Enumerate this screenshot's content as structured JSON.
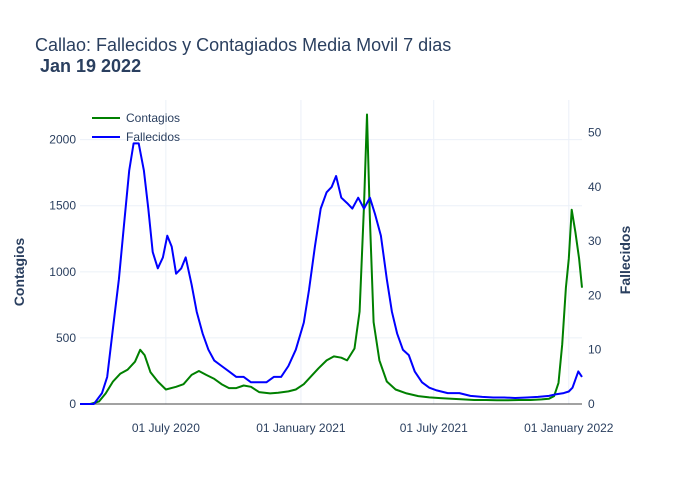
{
  "chart_data": {
    "type": "line",
    "title": "Callao: Fallecidos y Contagiados Media Movil 7 dias",
    "subtitle": "Jan 19 2022",
    "ylabel_left": "Contagios",
    "ylabel_right": "Fallecidos",
    "xlabel": "",
    "x_range": [
      "2020-03-06",
      "2022-01-19"
    ],
    "y_left_range": [
      0,
      2300
    ],
    "y_right_range": [
      0,
      56
    ],
    "y_left_ticks": [
      0,
      500,
      1000,
      1500,
      2000
    ],
    "y_right_ticks": [
      0,
      10,
      20,
      30,
      40,
      50
    ],
    "x_ticks": [
      {
        "date": "2020-07-01",
        "label": "01 July 2020"
      },
      {
        "date": "2021-01-01",
        "label": "01 January 2021"
      },
      {
        "date": "2021-07-01",
        "label": "01 July 2021"
      },
      {
        "date": "2022-01-01",
        "label": "01 January 2022"
      }
    ],
    "grid": true,
    "legend_position": "top-left",
    "series": [
      {
        "name": "Contagios",
        "axis": "left",
        "color": "#008000",
        "points": [
          [
            "2020-03-06",
            0
          ],
          [
            "2020-03-20",
            0
          ],
          [
            "2020-04-01",
            20
          ],
          [
            "2020-04-10",
            80
          ],
          [
            "2020-04-20",
            170
          ],
          [
            "2020-04-30",
            230
          ],
          [
            "2020-05-10",
            260
          ],
          [
            "2020-05-20",
            320
          ],
          [
            "2020-05-27",
            410
          ],
          [
            "2020-06-02",
            370
          ],
          [
            "2020-06-10",
            240
          ],
          [
            "2020-06-20",
            170
          ],
          [
            "2020-07-01",
            110
          ],
          [
            "2020-07-15",
            130
          ],
          [
            "2020-07-25",
            150
          ],
          [
            "2020-08-05",
            220
          ],
          [
            "2020-08-15",
            250
          ],
          [
            "2020-08-25",
            220
          ],
          [
            "2020-09-05",
            190
          ],
          [
            "2020-09-15",
            150
          ],
          [
            "2020-09-25",
            120
          ],
          [
            "2020-10-05",
            120
          ],
          [
            "2020-10-15",
            140
          ],
          [
            "2020-10-25",
            130
          ],
          [
            "2020-11-05",
            90
          ],
          [
            "2020-11-20",
            80
          ],
          [
            "2020-12-01",
            85
          ],
          [
            "2020-12-15",
            95
          ],
          [
            "2020-12-25",
            110
          ],
          [
            "2021-01-05",
            150
          ],
          [
            "2021-01-15",
            210
          ],
          [
            "2021-01-25",
            270
          ],
          [
            "2021-02-05",
            330
          ],
          [
            "2021-02-15",
            360
          ],
          [
            "2021-02-25",
            350
          ],
          [
            "2021-03-05",
            330
          ],
          [
            "2021-03-15",
            420
          ],
          [
            "2021-03-22",
            700
          ],
          [
            "2021-03-28",
            1500
          ],
          [
            "2021-04-01",
            2190
          ],
          [
            "2021-04-05",
            1400
          ],
          [
            "2021-04-10",
            620
          ],
          [
            "2021-04-18",
            330
          ],
          [
            "2021-04-28",
            170
          ],
          [
            "2021-05-10",
            110
          ],
          [
            "2021-05-25",
            80
          ],
          [
            "2021-06-10",
            60
          ],
          [
            "2021-06-25",
            50
          ],
          [
            "2021-07-10",
            45
          ],
          [
            "2021-07-25",
            40
          ],
          [
            "2021-08-10",
            35
          ],
          [
            "2021-08-25",
            30
          ],
          [
            "2021-09-10",
            30
          ],
          [
            "2021-09-25",
            28
          ],
          [
            "2021-10-10",
            28
          ],
          [
            "2021-10-25",
            30
          ],
          [
            "2021-11-10",
            30
          ],
          [
            "2021-11-25",
            35
          ],
          [
            "2021-12-05",
            40
          ],
          [
            "2021-12-12",
            60
          ],
          [
            "2021-12-18",
            160
          ],
          [
            "2021-12-23",
            450
          ],
          [
            "2021-12-28",
            880
          ],
          [
            "2022-01-01",
            1100
          ],
          [
            "2022-01-05",
            1470
          ],
          [
            "2022-01-10",
            1300
          ],
          [
            "2022-01-15",
            1100
          ],
          [
            "2022-01-19",
            880
          ]
        ]
      },
      {
        "name": "Fallecidos",
        "axis": "right",
        "color": "#0000ff",
        "points": [
          [
            "2020-03-06",
            0
          ],
          [
            "2020-03-25",
            0
          ],
          [
            "2020-04-05",
            2
          ],
          [
            "2020-04-12",
            5
          ],
          [
            "2020-04-20",
            14
          ],
          [
            "2020-04-28",
            23
          ],
          [
            "2020-05-05",
            33
          ],
          [
            "2020-05-12",
            43
          ],
          [
            "2020-05-18",
            48
          ],
          [
            "2020-05-25",
            48
          ],
          [
            "2020-06-01",
            43
          ],
          [
            "2020-06-07",
            36
          ],
          [
            "2020-06-13",
            28
          ],
          [
            "2020-06-20",
            25
          ],
          [
            "2020-06-27",
            27
          ],
          [
            "2020-07-03",
            31
          ],
          [
            "2020-07-09",
            29
          ],
          [
            "2020-07-15",
            24
          ],
          [
            "2020-07-22",
            25
          ],
          [
            "2020-07-28",
            27
          ],
          [
            "2020-08-05",
            22
          ],
          [
            "2020-08-12",
            17
          ],
          [
            "2020-08-20",
            13
          ],
          [
            "2020-08-28",
            10
          ],
          [
            "2020-09-05",
            8
          ],
          [
            "2020-09-15",
            7
          ],
          [
            "2020-09-25",
            6
          ],
          [
            "2020-10-05",
            5
          ],
          [
            "2020-10-15",
            5
          ],
          [
            "2020-10-25",
            4
          ],
          [
            "2020-11-05",
            4
          ],
          [
            "2020-11-15",
            4
          ],
          [
            "2020-11-25",
            5
          ],
          [
            "2020-12-05",
            5
          ],
          [
            "2020-12-15",
            7
          ],
          [
            "2020-12-25",
            10
          ],
          [
            "2021-01-05",
            15
          ],
          [
            "2021-01-12",
            21
          ],
          [
            "2021-01-20",
            29
          ],
          [
            "2021-01-28",
            36
          ],
          [
            "2021-02-05",
            39
          ],
          [
            "2021-02-12",
            40
          ],
          [
            "2021-02-18",
            42
          ],
          [
            "2021-02-25",
            38
          ],
          [
            "2021-03-05",
            37
          ],
          [
            "2021-03-12",
            36
          ],
          [
            "2021-03-20",
            38
          ],
          [
            "2021-03-28",
            36
          ],
          [
            "2021-04-05",
            38
          ],
          [
            "2021-04-12",
            35
          ],
          [
            "2021-04-20",
            31
          ],
          [
            "2021-04-28",
            23
          ],
          [
            "2021-05-05",
            17
          ],
          [
            "2021-05-12",
            13
          ],
          [
            "2021-05-20",
            10
          ],
          [
            "2021-05-28",
            9
          ],
          [
            "2021-06-05",
            6
          ],
          [
            "2021-06-15",
            4
          ],
          [
            "2021-06-25",
            3
          ],
          [
            "2021-07-05",
            2.5
          ],
          [
            "2021-07-20",
            2
          ],
          [
            "2021-08-05",
            2
          ],
          [
            "2021-08-20",
            1.5
          ],
          [
            "2021-09-05",
            1.3
          ],
          [
            "2021-09-20",
            1.2
          ],
          [
            "2021-10-05",
            1.2
          ],
          [
            "2021-10-20",
            1.1
          ],
          [
            "2021-11-05",
            1.2
          ],
          [
            "2021-11-20",
            1.3
          ],
          [
            "2021-12-05",
            1.5
          ],
          [
            "2021-12-15",
            1.8
          ],
          [
            "2021-12-25",
            2
          ],
          [
            "2022-01-01",
            2.3
          ],
          [
            "2022-01-06",
            3
          ],
          [
            "2022-01-10",
            4.5
          ],
          [
            "2022-01-14",
            6
          ],
          [
            "2022-01-19",
            5
          ]
        ]
      }
    ]
  }
}
